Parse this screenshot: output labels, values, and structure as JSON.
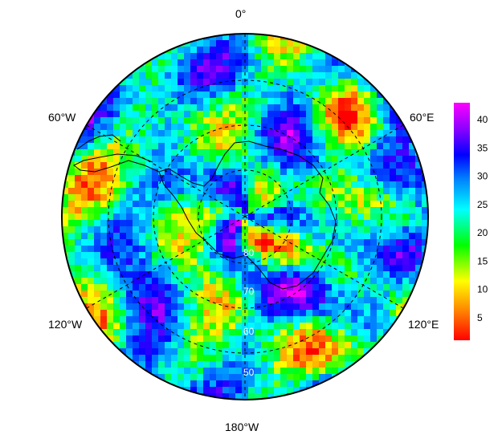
{
  "map": {
    "projection": "south-polar-stereographic",
    "center": "South Pole",
    "longitude_labels": [
      {
        "label": "0°",
        "lon": 0
      },
      {
        "label": "60°E",
        "lon": 60
      },
      {
        "label": "120°E",
        "lon": 120
      },
      {
        "label": "180°W",
        "lon": 180
      },
      {
        "label": "120°W",
        "lon": -120
      },
      {
        "label": "60°W",
        "lon": -60
      }
    ],
    "latitude_labels": [
      {
        "label": "80",
        "lat": -80
      },
      {
        "label": "70",
        "lat": -70
      },
      {
        "label": "60",
        "lat": -60
      },
      {
        "label": "50",
        "lat": -50
      }
    ],
    "graticule": "dashed",
    "field_colorscale": "rainbow (red-yellow-green-cyan-blue-purple-magenta)"
  },
  "colorbar": {
    "min": 1,
    "max": 43,
    "ticks": [
      "5",
      "10",
      "15",
      "20",
      "25",
      "30",
      "35",
      "40"
    ],
    "tick_values": [
      5,
      10,
      15,
      20,
      25,
      30,
      35,
      40
    ],
    "colors": [
      "#ff0000",
      "#ff8000",
      "#ffff00",
      "#00ff00",
      "#00ffff",
      "#0080ff",
      "#0000ff",
      "#8000ff",
      "#ff00ff"
    ]
  }
}
